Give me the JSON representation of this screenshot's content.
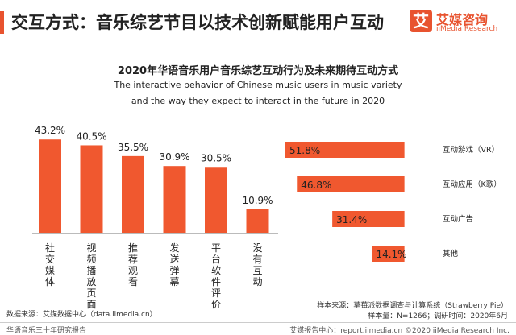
{
  "page": {
    "headline": "交互方式：音乐综艺节目以技术创新赋能用户互动",
    "accent_color": "#e8532f"
  },
  "brand": {
    "logo_glyph": "艾",
    "name_cn": "艾媒咨询",
    "name_en": "iiMedia Research"
  },
  "chart_header": {
    "title": "2020年华语音乐用户音乐综艺互动行为及未来期待互动方式",
    "subtitle_line1": "The interactive behavior of Chinese music users in music variety",
    "subtitle_line2": "and the way they expect to interact in the future in   2020"
  },
  "chart_data": [
    {
      "type": "bar",
      "orientation": "vertical",
      "categories": [
        "社交媒体",
        "视频播放页面",
        "推荐观看",
        "发送弹幕",
        "平台软件评价",
        "没有互动"
      ],
      "values": [
        43.2,
        40.5,
        35.5,
        30.9,
        30.5,
        10.9
      ],
      "value_labels": [
        "43.2%",
        "40.5%",
        "35.5%",
        "30.9%",
        "30.5%",
        "10.9%"
      ],
      "unit": "%",
      "ylim": [
        0,
        50
      ],
      "grid": false,
      "color": "#f0582f"
    },
    {
      "type": "bar",
      "orientation": "horizontal",
      "categories": [
        "互动游戏（VR）",
        "互动应用（K歌）",
        "互动广告",
        "其他"
      ],
      "values": [
        51.8,
        46.8,
        31.4,
        14.1
      ],
      "value_labels": [
        "51.8%",
        "46.8%",
        "31.4%",
        "14.1%"
      ],
      "unit": "%",
      "xlim": [
        0,
        55
      ],
      "grid": false,
      "color": "#f0582f"
    }
  ],
  "sources": {
    "left": "数据来源：艾媒数据中心（data.iimedia.cn）",
    "right_line1": "样本来源：草莓派数据调查与计算系统（Strawberry Pie）",
    "right_line2": "样本量：N=1266；调研时间：2020年6月"
  },
  "footer": {
    "left": "华语音乐三十年研究报告",
    "right": "艾媒报告中心：report.iimedia.cn   ©2020  iiMedia Research  Inc."
  }
}
